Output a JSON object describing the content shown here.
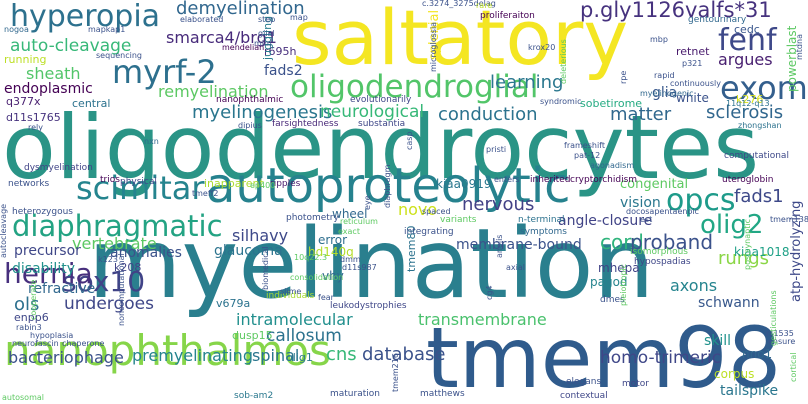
{
  "words": [
    {
      "text": "myelination",
      "color": "#2a7f8e"
    },
    {
      "text": "oligodendrocytes",
      "color": "#2a9486"
    },
    {
      "text": "saltatory",
      "color": "#f4e622"
    },
    {
      "text": "tmem98",
      "color": "#2f5b8c"
    },
    {
      "text": "autoproteolytic",
      "color": "#26828e"
    },
    {
      "text": "nanophthalmos",
      "color": "#86d549"
    },
    {
      "text": "oligodendroglial",
      "color": "#52c569"
    },
    {
      "text": "diaphragmatic",
      "color": "#23a383"
    },
    {
      "text": "hyperopia",
      "color": "#2d718e"
    },
    {
      "text": "myrf-2",
      "color": "#2d708e"
    },
    {
      "text": "exome",
      "color": "#345f8d"
    },
    {
      "text": "scimitar",
      "color": "#25848e"
    },
    {
      "text": "sox10",
      "color": "#404387"
    },
    {
      "text": "hernia",
      "color": "#472f7d"
    },
    {
      "text": "fenf",
      "color": "#3e4989"
    },
    {
      "text": "opcs",
      "color": "#1e9b8a"
    },
    {
      "text": "olig2",
      "color": "#22a785"
    },
    {
      "text": "demyelination",
      "color": "#31678e"
    },
    {
      "text": "p.gly1126valfs*31",
      "color": "#46327e"
    },
    {
      "text": "smarca4/brg1",
      "color": "#472a7a"
    },
    {
      "text": "auto-cleavage",
      "color": "#37b878"
    },
    {
      "text": "remyelination",
      "color": "#5cc863"
    },
    {
      "text": "myelinogenesis",
      "color": "#2a768e"
    },
    {
      "text": "neurological",
      "color": "#37b878"
    },
    {
      "text": "conduction",
      "color": "#2c738e"
    },
    {
      "text": "matter",
      "color": "#31688e"
    },
    {
      "text": "sclerosis",
      "color": "#31678e"
    },
    {
      "text": "nervous",
      "color": "#424186"
    },
    {
      "text": "vision",
      "color": "#2a778e"
    },
    {
      "text": "angle-closure",
      "color": "#414487"
    },
    {
      "text": "cord",
      "color": "#2fb47c"
    },
    {
      "text": "proband",
      "color": "#3b528b"
    },
    {
      "text": "rungs",
      "color": "#8bd646"
    },
    {
      "text": "fads1",
      "color": "#3e4989"
    },
    {
      "text": "fads2",
      "color": "#3b528b"
    },
    {
      "text": "argues",
      "color": "#481f70"
    },
    {
      "text": "sheath",
      "color": "#52c569"
    },
    {
      "text": "endoplasmic",
      "color": "#440154"
    },
    {
      "text": "learning",
      "color": "#2a778e"
    },
    {
      "text": "glia",
      "color": "#38588c"
    },
    {
      "text": "membrane-bound",
      "color": "#3b528b"
    },
    {
      "text": "homo-trimeric",
      "color": "#3f4788"
    },
    {
      "text": "transmembrane",
      "color": "#4ac16d"
    },
    {
      "text": "intramolecular",
      "color": "#218f8d"
    },
    {
      "text": "callosum",
      "color": "#2c728e"
    },
    {
      "text": "premyelinating",
      "color": "#25848e"
    },
    {
      "text": "spinal",
      "color": "#2b758e"
    },
    {
      "text": "cns",
      "color": "#37b878"
    },
    {
      "text": "database",
      "color": "#3b528b"
    },
    {
      "text": "bacteriophage",
      "color": "#3b528b"
    },
    {
      "text": "undergoes",
      "color": "#3f4788"
    },
    {
      "text": "ols",
      "color": "#2d708e"
    },
    {
      "text": "novo",
      "color": "#cde11d"
    },
    {
      "text": "vertebrate",
      "color": "#5cc863"
    },
    {
      "text": "silhavy",
      "color": "#3e4989"
    },
    {
      "text": "glaucoma",
      "color": "#2c738e"
    },
    {
      "text": "anomalies",
      "color": "#3b528b"
    },
    {
      "text": "precursor",
      "color": "#3f4788"
    },
    {
      "text": "disability",
      "color": "#21918c"
    },
    {
      "text": "refractive",
      "color": "#31688e"
    },
    {
      "text": "skill",
      "color": "#20928c"
    },
    {
      "text": "schwann",
      "color": "#38588c"
    },
    {
      "text": "axons",
      "color": "#25848e"
    },
    {
      "text": "corpus",
      "color": "#bddf26"
    },
    {
      "text": "tailspike",
      "color": "#2a768e"
    },
    {
      "text": "pagod",
      "color": "#25848e"
    },
    {
      "text": "mhepa",
      "color": "#414487"
    },
    {
      "text": "congenital",
      "color": "#5ec962"
    },
    {
      "text": "wheel",
      "color": "#31688e"
    },
    {
      "text": "kiaa0919",
      "color": "#2a778e"
    },
    {
      "text": "kiaa1018",
      "color": "#1fa187"
    },
    {
      "text": "error",
      "color": "#2e6e8e"
    },
    {
      "text": "hd140q",
      "color": "#b5de2b"
    },
    {
      "text": "vhy",
      "color": "#31688e"
    },
    {
      "text": "dusp15",
      "color": "#5ec962"
    },
    {
      "text": "v679a",
      "color": "#2c738e"
    },
    {
      "text": "enpp6",
      "color": "#3f4788"
    },
    {
      "text": "olig1",
      "color": "#2a788e"
    },
    {
      "text": "nno1",
      "color": "#31688e"
    },
    {
      "text": "inapparent",
      "color": "#addc30"
    },
    {
      "text": "white",
      "color": "#3b528b"
    },
    {
      "text": "central",
      "color": "#2c728e"
    },
    {
      "text": "sobetirome",
      "color": "#25ab82"
    },
    {
      "text": "k276",
      "color": "#d8e219"
    },
    {
      "text": "retnet",
      "color": "#481a6c"
    },
    {
      "text": "cedc",
      "color": "#39568c"
    },
    {
      "text": "q377x",
      "color": "#481f70"
    },
    {
      "text": "d11s1765",
      "color": "#46327e"
    },
    {
      "text": "r695h",
      "color": "#472f7d"
    },
    {
      "text": "k208",
      "color": "#414487"
    },
    {
      "text": "powerblast",
      "color": "#5cc863"
    },
    {
      "text": "atp-hydrolyzing",
      "color": "#3e4989"
    },
    {
      "text": "juggling",
      "color": "#287c8e"
    },
    {
      "text": "splenial",
      "color": "#f4e622"
    },
    {
      "text": "tmem80",
      "color": "#2c728e"
    },
    {
      "text": "nanophthalmic",
      "color": "#440154"
    },
    {
      "text": "evolutionarily",
      "color": "#3f4788"
    },
    {
      "text": "substantia",
      "color": "#3f4788"
    },
    {
      "text": "farsightedness",
      "color": "#482878"
    },
    {
      "text": "ripples",
      "color": "#481a6c"
    },
    {
      "text": "inherited",
      "color": "#440154"
    },
    {
      "text": "physical",
      "color": "#3f4788"
    },
    {
      "text": "networks",
      "color": "#3b528b"
    },
    {
      "text": "heterozygous",
      "color": "#3b528b"
    },
    {
      "text": "trios",
      "color": "#440154"
    },
    {
      "text": "dysmyelination",
      "color": "#414487"
    },
    {
      "text": "proliferaiton",
      "color": "#440154"
    },
    {
      "text": "gentourinary",
      "color": "#31688e"
    },
    {
      "text": "computational",
      "color": "#3e4989"
    },
    {
      "text": "uteroglobin",
      "color": "#440154"
    },
    {
      "text": "cryptorchidism",
      "color": "#440154"
    },
    {
      "text": "photometry",
      "color": "#3b528b"
    },
    {
      "text": "variants",
      "color": "#5ec962"
    },
    {
      "text": "n-terminal",
      "color": "#2c728e"
    },
    {
      "text": "integrating",
      "color": "#3b528b"
    },
    {
      "text": "symptoms",
      "color": "#31688e"
    },
    {
      "text": "isomorphous",
      "color": "#5ec962"
    },
    {
      "text": "hypospadias",
      "color": "#3f4788"
    },
    {
      "text": "individuals",
      "color": "#a8db34"
    },
    {
      "text": "sob-am2",
      "color": "#2a788e"
    },
    {
      "text": "maturation",
      "color": "#3b528b"
    },
    {
      "text": "contextual",
      "color": "#3f4788"
    },
    {
      "text": "matthews",
      "color": "#3b528b"
    },
    {
      "text": "leukodystrophies",
      "color": "#3f4788"
    },
    {
      "text": "elegans",
      "color": "#3b528b"
    },
    {
      "text": "dmes",
      "color": "#3b528b"
    },
    {
      "text": "motor",
      "color": "#3f4788"
    },
    {
      "text": "nogoa",
      "color": "#31688e"
    },
    {
      "text": "mapkap1",
      "color": "#3b528b"
    },
    {
      "text": "sequencing",
      "color": "#3b528b"
    },
    {
      "text": "mendelian",
      "color": "#440154"
    },
    {
      "text": "running",
      "color": "#bddf26"
    },
    {
      "text": "elaborated",
      "color": "#3b528b"
    },
    {
      "text": "step",
      "color": "#3b528b"
    },
    {
      "text": "map",
      "color": "#3b528b"
    },
    {
      "text": "c.3274_3275delag",
      "color": "#3b528b"
    },
    {
      "text": "rare",
      "color": "#bddf26"
    },
    {
      "text": "krox20",
      "color": "#3b528b"
    },
    {
      "text": "mbp",
      "color": "#3b528b"
    },
    {
      "text": "p321",
      "color": "#3b528b"
    },
    {
      "text": "rapid",
      "color": "#3b528b"
    },
    {
      "text": "continuously",
      "color": "#3b528b"
    },
    {
      "text": "myelinogenic",
      "color": "#31688e"
    },
    {
      "text": "syndromic",
      "color": "#3b528b"
    },
    {
      "text": "11q12-q13",
      "color": "#2c728e"
    },
    {
      "text": "zhongshan",
      "color": "#2c728e"
    },
    {
      "text": "frameshift",
      "color": "#3b528b"
    },
    {
      "text": "pat-12",
      "color": "#3b528b"
    },
    {
      "text": "agonadism",
      "color": "#31688e"
    },
    {
      "text": "pristi",
      "color": "#3b528b"
    },
    {
      "text": "enters",
      "color": "#3b528b"
    },
    {
      "text": "nxn",
      "color": "#31688e"
    },
    {
      "text": "rely",
      "color": "#3b528b"
    },
    {
      "text": "dipius",
      "color": "#3b528b"
    },
    {
      "text": "dmm",
      "color": "#3b528b"
    },
    {
      "text": "d11s987",
      "color": "#3b528b"
    },
    {
      "text": "10q22.3",
      "color": "#5ec962"
    },
    {
      "text": "k123",
      "color": "#3b528b"
    },
    {
      "text": "rabin3",
      "color": "#3b528b"
    },
    {
      "text": "hypoplasia",
      "color": "#3b528b"
    },
    {
      "text": "neurofascin",
      "color": "#3b528b"
    },
    {
      "text": "chaperone",
      "color": "#3b528b"
    },
    {
      "text": "autosomal",
      "color": "#5ec962"
    },
    {
      "text": "consolidation",
      "color": "#5ec962"
    },
    {
      "text": "fear",
      "color": "#3b528b"
    },
    {
      "text": "slime",
      "color": "#3b528b"
    },
    {
      "text": "axial",
      "color": "#3b528b"
    },
    {
      "text": "rs1535",
      "color": "#3b528b"
    },
    {
      "text": "ensure",
      "color": "#3b528b"
    },
    {
      "text": "tmem138",
      "color": "#3b528b"
    },
    {
      "text": "docosapentaenoic",
      "color": "#3b528b"
    },
    {
      "text": "est",
      "color": "#3b528b"
    },
    {
      "text": "ep400",
      "color": "#5ec962"
    },
    {
      "text": "tmeff2",
      "color": "#3b528b"
    },
    {
      "text": "reticulum",
      "color": "#5ec962"
    },
    {
      "text": "exact",
      "color": "#5ec962"
    },
    {
      "text": "spaced",
      "color": "#3b528b"
    },
    {
      "text": "glial",
      "color": "#3b528b"
    },
    {
      "text": "mim",
      "color": "#3b528b"
    },
    {
      "text": "deleterious",
      "color": "#5ec962"
    },
    {
      "text": "rpe",
      "color": "#3b528b"
    },
    {
      "text": "microglossia",
      "color": "#3b528b"
    },
    {
      "text": "autocleavage",
      "color": "#3b528b"
    },
    {
      "text": "eye",
      "color": "#3b528b"
    },
    {
      "text": "noncomputational",
      "color": "#3b528b"
    },
    {
      "text": "cooperate",
      "color": "#5ec962"
    },
    {
      "text": "biomedical",
      "color": "#3b528b"
    },
    {
      "text": "diaphragm",
      "color": "#3b528b"
    },
    {
      "text": "casp",
      "color": "#3b528b"
    },
    {
      "text": "pleiotropic",
      "color": "#5ec962"
    },
    {
      "text": "gesticulations",
      "color": "#5ec962"
    },
    {
      "text": "tmem216",
      "color": "#3b528b"
    },
    {
      "text": "cg4",
      "color": "#3b528b"
    },
    {
      "text": "anolis",
      "color": "#3b528b"
    },
    {
      "text": "postsynaptic",
      "color": "#5ec962"
    },
    {
      "text": "cortical",
      "color": "#5ec962"
    },
    {
      "text": "mtdna",
      "color": "#3b528b"
    }
  ]
}
